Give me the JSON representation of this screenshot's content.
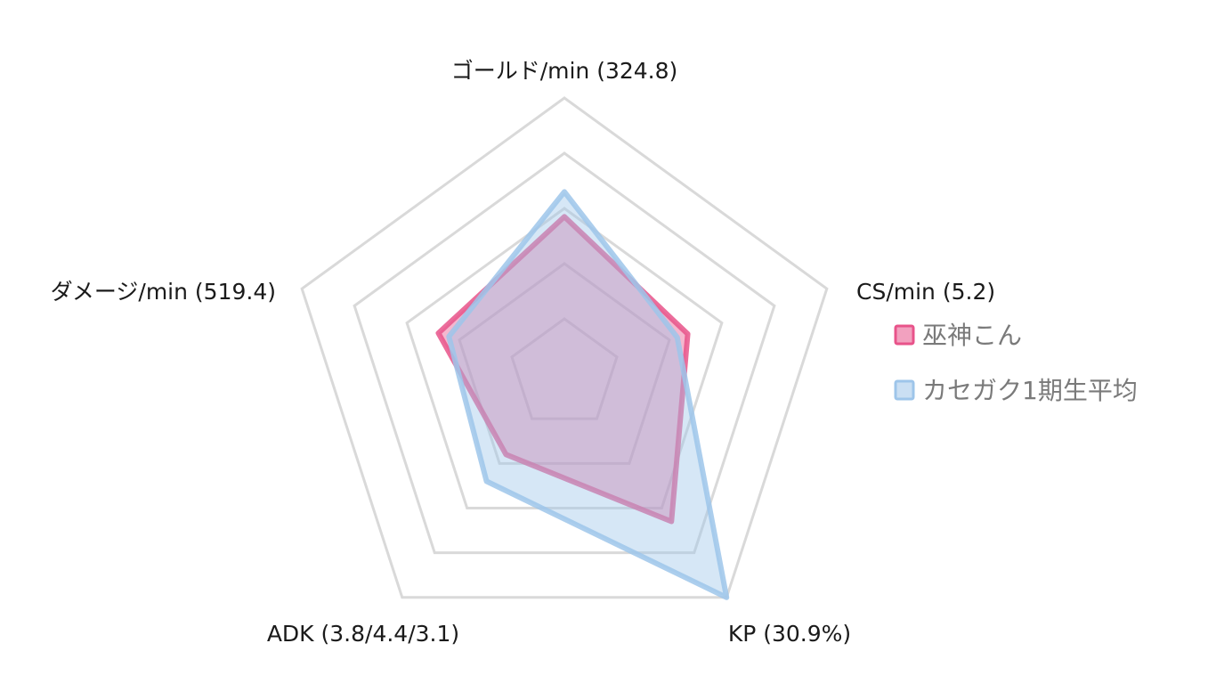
{
  "chart_data": {
    "type": "radar",
    "axes": [
      "ゴールド/min (324.8)",
      "CS/min (5.2)",
      "KP (30.9%)",
      "ADK (3.8/4.4/3.1)",
      "ダメージ/min (519.4)"
    ],
    "rmax": 1,
    "rings": [
      0.2,
      0.4,
      0.6,
      0.8,
      1.0
    ],
    "grid": true,
    "legend_position": "right",
    "series": [
      {
        "name": "巫神こん",
        "color": "#e8538a",
        "values": [
          0.57,
          0.47,
          0.66,
          0.36,
          0.48
        ]
      },
      {
        "name": "カセガク1期生平均",
        "color": "#9ec5ea",
        "values": [
          0.66,
          0.43,
          1.0,
          0.48,
          0.44
        ]
      }
    ]
  }
}
